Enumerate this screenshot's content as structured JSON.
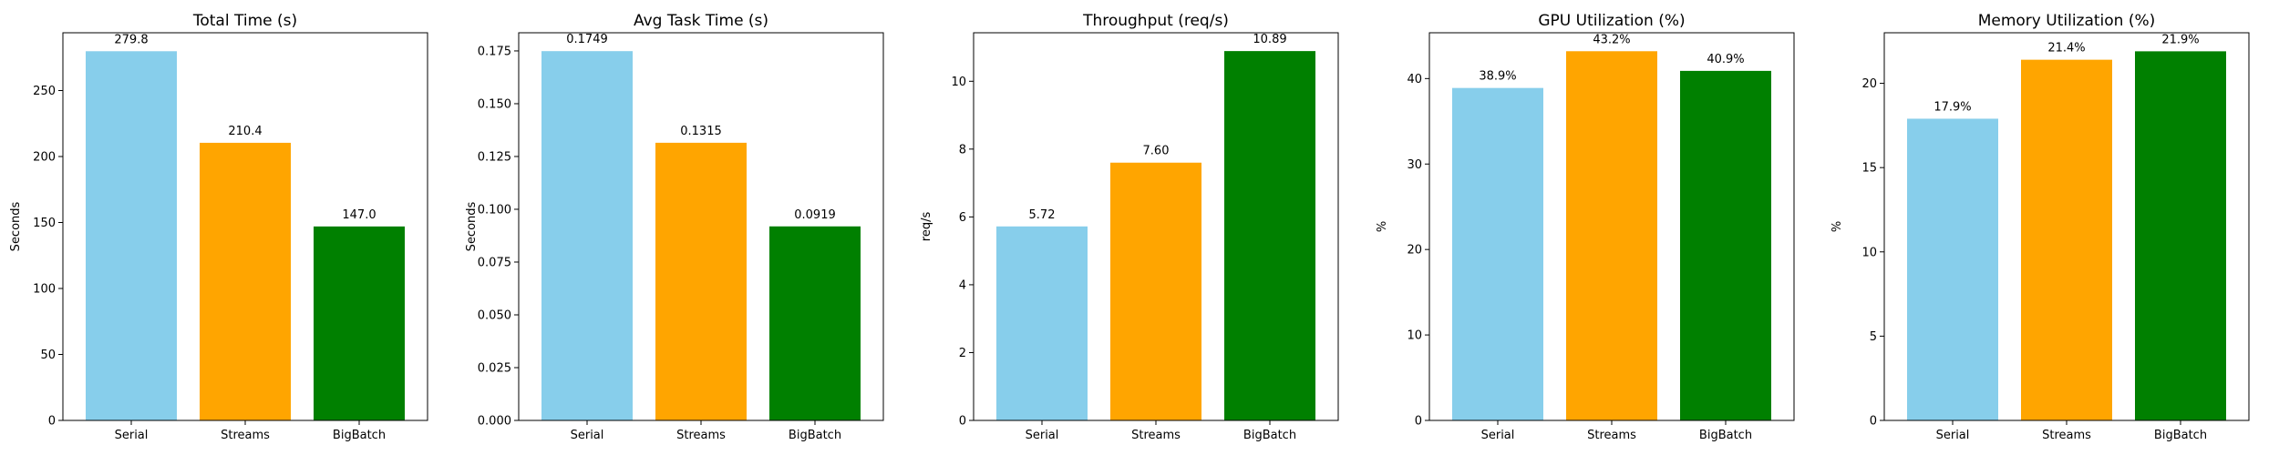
{
  "colors": {
    "serial": "#87CEEB",
    "streams": "#FFA500",
    "bigbatch": "#008000"
  },
  "chart_data": [
    {
      "type": "bar",
      "title": "Total Time (s)",
      "ylabel": "Seconds",
      "categories": [
        "Serial",
        "Streams",
        "BigBatch"
      ],
      "values": [
        279.8,
        210.4,
        147.0
      ],
      "data_labels": [
        "279.8",
        "210.4",
        "147.0"
      ],
      "ylim": [
        0,
        293.8
      ],
      "yticks": [
        0,
        50,
        100,
        150,
        200,
        250
      ],
      "ytick_labels": [
        "0",
        "50",
        "100",
        "150",
        "200",
        "250"
      ],
      "grid": false
    },
    {
      "type": "bar",
      "title": "Avg Task Time (s)",
      "ylabel": "Seconds",
      "categories": [
        "Serial",
        "Streams",
        "BigBatch"
      ],
      "values": [
        0.1749,
        0.1315,
        0.0919
      ],
      "data_labels": [
        "0.1749",
        "0.1315",
        "0.0919"
      ],
      "ylim": [
        0,
        0.1836
      ],
      "yticks": [
        0,
        0.025,
        0.05,
        0.075,
        0.1,
        0.125,
        0.15,
        0.175
      ],
      "ytick_labels": [
        "0.000",
        "0.025",
        "0.050",
        "0.075",
        "0.100",
        "0.125",
        "0.150",
        "0.175"
      ],
      "grid": false
    },
    {
      "type": "bar",
      "title": "Throughput (req/s)",
      "ylabel": "req/s",
      "categories": [
        "Serial",
        "Streams",
        "BigBatch"
      ],
      "values": [
        5.72,
        7.6,
        10.89
      ],
      "data_labels": [
        "5.72",
        "7.60",
        "10.89"
      ],
      "ylim": [
        0,
        11.43
      ],
      "yticks": [
        0,
        2,
        4,
        6,
        8,
        10
      ],
      "ytick_labels": [
        "0",
        "2",
        "4",
        "6",
        "8",
        "10"
      ],
      "grid": false
    },
    {
      "type": "bar",
      "title": "GPU Utilization (%)",
      "ylabel": "%",
      "categories": [
        "Serial",
        "Streams",
        "BigBatch"
      ],
      "values": [
        38.9,
        43.2,
        40.9
      ],
      "data_labels": [
        "38.9%",
        "43.2%",
        "40.9%"
      ],
      "ylim": [
        0,
        45.36
      ],
      "yticks": [
        0,
        10,
        20,
        30,
        40
      ],
      "ytick_labels": [
        "0",
        "10",
        "20",
        "30",
        "40"
      ],
      "grid": false
    },
    {
      "type": "bar",
      "title": "Memory Utilization (%)",
      "ylabel": "%",
      "categories": [
        "Serial",
        "Streams",
        "BigBatch"
      ],
      "values": [
        17.9,
        21.4,
        21.9
      ],
      "data_labels": [
        "17.9%",
        "21.4%",
        "21.9%"
      ],
      "ylim": [
        0,
        23.0
      ],
      "yticks": [
        0,
        5,
        10,
        15,
        20
      ],
      "ytick_labels": [
        "0",
        "5",
        "10",
        "15",
        "20"
      ],
      "grid": false
    }
  ]
}
